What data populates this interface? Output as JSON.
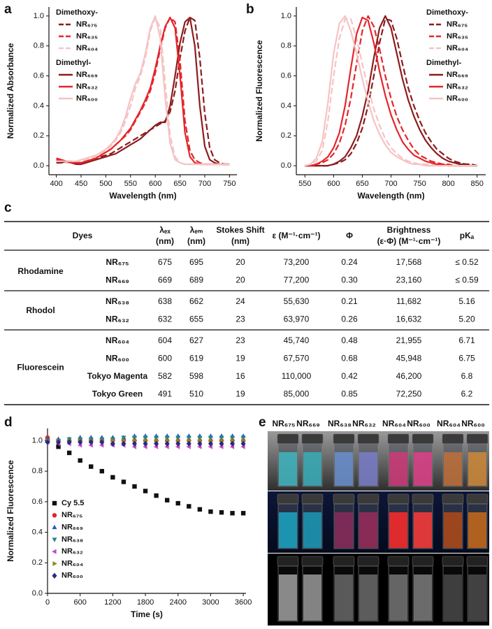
{
  "chart_data": [
    {
      "type": "line",
      "panel_label": "a",
      "x_label": "Wavelength (nm)",
      "y_label": "Normalized Absorbance",
      "xlim": [
        385,
        765
      ],
      "xticks": [
        400,
        450,
        500,
        550,
        600,
        650,
        700,
        750
      ],
      "ylim": [
        -0.06,
        1.06
      ],
      "yticks": [
        {
          "value": 0,
          "label": "0.0"
        },
        0.2,
        0.4,
        0.6,
        0.8,
        {
          "value": 1,
          "label": "1.0"
        }
      ],
      "legend_groups": [
        {
          "title": "Dimethoxy-",
          "style": "dashed"
        },
        {
          "title": "Dimethyl-",
          "style": "solid"
        }
      ],
      "x": [
        400,
        410,
        420,
        430,
        440,
        450,
        460,
        470,
        480,
        490,
        500,
        510,
        520,
        530,
        540,
        550,
        560,
        570,
        580,
        590,
        600,
        610,
        620,
        630,
        640,
        650,
        660,
        670,
        680,
        690,
        700,
        710,
        720,
        730,
        740,
        750
      ],
      "series": [
        {
          "name": "NR₆₇₅",
          "color": "#8c1c1e",
          "style": "dashed",
          "values": [
            0.03,
            0.03,
            0.03,
            0.03,
            0.02,
            0.02,
            0.03,
            0.04,
            0.05,
            0.06,
            0.07,
            0.08,
            0.1,
            0.12,
            0.14,
            0.16,
            0.18,
            0.2,
            0.22,
            0.24,
            0.26,
            0.28,
            0.3,
            0.36,
            0.5,
            0.72,
            0.9,
            0.99,
            0.97,
            0.72,
            0.35,
            0.12,
            0.04,
            0.02,
            0.01,
            0.01
          ]
        },
        {
          "name": "NR₆₃₅",
          "color": "#e4262b",
          "style": "dashed",
          "values": [
            0.05,
            0.04,
            0.03,
            0.02,
            0.02,
            0.02,
            0.03,
            0.04,
            0.05,
            0.07,
            0.09,
            0.11,
            0.14,
            0.17,
            0.2,
            0.24,
            0.3,
            0.36,
            0.42,
            0.5,
            0.62,
            0.78,
            0.92,
            0.99,
            0.96,
            0.7,
            0.3,
            0.1,
            0.04,
            0.02,
            0.01,
            0.01,
            0.01,
            0.01,
            0.01,
            0.01
          ]
        },
        {
          "name": "NR₆₀₄",
          "color": "#f6c3c4",
          "style": "dashed",
          "values": [
            0.02,
            0.02,
            0.02,
            0.02,
            0.02,
            0.03,
            0.04,
            0.05,
            0.06,
            0.08,
            0.1,
            0.13,
            0.17,
            0.22,
            0.3,
            0.4,
            0.52,
            0.6,
            0.72,
            0.9,
            0.99,
            0.92,
            0.55,
            0.2,
            0.06,
            0.02,
            0.01,
            0.01,
            0.01,
            0.01,
            0.01,
            0.01,
            0.01,
            0.01,
            0.01,
            0.01
          ]
        },
        {
          "name": "NR₆₆₉",
          "color": "#8c1c1e",
          "style": "solid",
          "values": [
            0.02,
            0.02,
            0.03,
            0.02,
            0.01,
            0.01,
            0.02,
            0.03,
            0.04,
            0.05,
            0.06,
            0.07,
            0.08,
            0.1,
            0.12,
            0.14,
            0.16,
            0.18,
            0.21,
            0.24,
            0.27,
            0.29,
            0.29,
            0.4,
            0.6,
            0.82,
            0.96,
            0.99,
            0.8,
            0.4,
            0.13,
            0.04,
            0.02,
            0.01,
            0.01,
            0.01
          ]
        },
        {
          "name": "NR₆₃₂",
          "color": "#e4262b",
          "style": "solid",
          "values": [
            0.04,
            0.04,
            0.03,
            0.02,
            0.02,
            0.02,
            0.03,
            0.04,
            0.05,
            0.07,
            0.09,
            0.11,
            0.14,
            0.17,
            0.21,
            0.25,
            0.31,
            0.37,
            0.44,
            0.52,
            0.65,
            0.8,
            0.93,
            0.99,
            0.92,
            0.6,
            0.22,
            0.06,
            0.02,
            0.01,
            0.01,
            0.01,
            0.01,
            0.01,
            0.01,
            0.01
          ]
        },
        {
          "name": "NR₆₀₀",
          "color": "#f6c3c4",
          "style": "solid",
          "values": [
            0.03,
            0.03,
            0.03,
            0.03,
            0.03,
            0.04,
            0.05,
            0.06,
            0.07,
            0.09,
            0.11,
            0.14,
            0.18,
            0.24,
            0.33,
            0.45,
            0.55,
            0.62,
            0.75,
            0.92,
            1.0,
            0.85,
            0.45,
            0.15,
            0.04,
            0.02,
            0.01,
            0.01,
            0.01,
            0.01,
            0.01,
            0.01,
            0.01,
            0.01,
            0.01,
            0.01
          ]
        }
      ]
    },
    {
      "type": "line",
      "panel_label": "b",
      "x_label": "Wavelength (nm)",
      "y_label": "Normalized Fluorescence",
      "xlim": [
        535,
        865
      ],
      "xticks": [
        550,
        600,
        650,
        700,
        750,
        800,
        850
      ],
      "ylim": [
        -0.06,
        1.06
      ],
      "yticks": [
        {
          "value": 0,
          "label": "0.0"
        },
        0.2,
        0.4,
        0.6,
        0.8,
        {
          "value": 1,
          "label": "1.0"
        }
      ],
      "legend_groups": [
        {
          "title": "Dimethoxy-",
          "style": "dashed"
        },
        {
          "title": "Dimethyl-",
          "style": "solid"
        }
      ],
      "x": [
        550,
        560,
        570,
        580,
        590,
        600,
        610,
        620,
        630,
        640,
        650,
        660,
        670,
        680,
        690,
        700,
        710,
        720,
        730,
        740,
        750,
        760,
        770,
        780,
        790,
        800,
        810,
        820,
        830,
        840,
        850
      ],
      "series": [
        {
          "name": "NR₆₇₅",
          "color": "#8c1c1e",
          "style": "dashed",
          "values": [
            0,
            0,
            0,
            0,
            0,
            0.01,
            0.02,
            0.04,
            0.08,
            0.15,
            0.25,
            0.4,
            0.6,
            0.82,
            0.98,
            0.97,
            0.85,
            0.68,
            0.52,
            0.4,
            0.3,
            0.22,
            0.16,
            0.11,
            0.08,
            0.05,
            0.03,
            0.02,
            0.01,
            0.01,
            0
          ]
        },
        {
          "name": "NR₆₃₅",
          "color": "#e4262b",
          "style": "dashed",
          "values": [
            0,
            0,
            0.01,
            0.02,
            0.04,
            0.08,
            0.15,
            0.27,
            0.45,
            0.68,
            0.9,
            1.0,
            0.93,
            0.78,
            0.6,
            0.45,
            0.33,
            0.24,
            0.17,
            0.11,
            0.07,
            0.05,
            0.03,
            0.02,
            0.01,
            0.01,
            0,
            0,
            0,
            0,
            0
          ]
        },
        {
          "name": "NR₆₀₄",
          "color": "#f6c3c4",
          "style": "dashed",
          "values": [
            0,
            0.01,
            0.03,
            0.1,
            0.3,
            0.6,
            0.85,
            0.98,
            0.98,
            0.85,
            0.68,
            0.52,
            0.38,
            0.27,
            0.18,
            0.12,
            0.08,
            0.05,
            0.03,
            0.02,
            0.01,
            0.01,
            0.01,
            0,
            0,
            0,
            0,
            0,
            0,
            0,
            0
          ]
        },
        {
          "name": "NR₆₆₉",
          "color": "#8c1c1e",
          "style": "solid",
          "values": [
            0,
            0,
            0,
            0,
            0,
            0.01,
            0.03,
            0.06,
            0.12,
            0.2,
            0.33,
            0.5,
            0.72,
            0.92,
            1.0,
            0.92,
            0.75,
            0.58,
            0.44,
            0.33,
            0.24,
            0.17,
            0.12,
            0.08,
            0.05,
            0.03,
            0.02,
            0.01,
            0.01,
            0,
            0
          ]
        },
        {
          "name": "NR₆₃₂",
          "color": "#e4262b",
          "style": "solid",
          "values": [
            0,
            0,
            0.01,
            0.03,
            0.06,
            0.12,
            0.22,
            0.4,
            0.65,
            0.88,
            0.99,
            0.97,
            0.82,
            0.63,
            0.47,
            0.34,
            0.24,
            0.16,
            0.11,
            0.07,
            0.05,
            0.03,
            0.02,
            0.01,
            0.01,
            0,
            0,
            0,
            0,
            0,
            0
          ]
        },
        {
          "name": "NR₆₀₀",
          "color": "#f6c3c4",
          "style": "solid",
          "values": [
            0,
            0.01,
            0.05,
            0.16,
            0.42,
            0.75,
            0.95,
            1.0,
            0.9,
            0.75,
            0.58,
            0.43,
            0.3,
            0.21,
            0.14,
            0.09,
            0.06,
            0.04,
            0.02,
            0.01,
            0.01,
            0,
            0,
            0,
            0,
            0,
            0,
            0,
            0,
            0,
            0
          ]
        }
      ]
    },
    {
      "type": "scatter",
      "panel_label": "d",
      "x_label": "Time (s)",
      "y_label": "Normalized Fluorescence",
      "xlim": [
        0,
        3650
      ],
      "xticks": [
        0,
        600,
        1200,
        1800,
        2400,
        3000,
        3600
      ],
      "ylim": [
        0,
        1.08
      ],
      "yticks": [
        {
          "value": 0,
          "label": "0.0"
        },
        0.2,
        0.4,
        0.6,
        0.8,
        {
          "value": 1,
          "label": "1.0"
        }
      ],
      "x": [
        0,
        200,
        400,
        600,
        800,
        1000,
        1200,
        1400,
        1600,
        1800,
        2000,
        2200,
        2400,
        2600,
        2800,
        3000,
        3200,
        3400,
        3600
      ],
      "series": [
        {
          "name": "Cy 5.5",
          "color": "#111111",
          "marker": "square",
          "values": [
            1.0,
            0.96,
            0.92,
            0.87,
            0.83,
            0.8,
            0.76,
            0.73,
            0.7,
            0.67,
            0.64,
            0.61,
            0.59,
            0.57,
            0.55,
            0.535,
            0.53,
            0.525,
            0.525
          ]
        },
        {
          "name": "NR₆₇₅",
          "color": "#e8212a",
          "marker": "circle",
          "values": [
            1.02,
            1.0,
            1.0,
            1.0,
            1.0,
            1.0,
            1.0,
            1.0,
            1.0,
            1.0,
            1.0,
            1.0,
            1.0,
            1.0,
            1.0,
            1.0,
            1.0,
            1.0,
            1.0
          ]
        },
        {
          "name": "NR₆₆₉",
          "color": "#3355c8",
          "marker": "triangle-up",
          "values": [
            1.01,
            1.01,
            1.01,
            1.02,
            1.02,
            1.02,
            1.02,
            1.02,
            1.03,
            1.03,
            1.03,
            1.03,
            1.03,
            1.03,
            1.03,
            1.03,
            1.03,
            1.03,
            1.03
          ]
        },
        {
          "name": "NR₆₃₈",
          "color": "#1c8a84",
          "marker": "triangle-down",
          "values": [
            1.0,
            1.0,
            1.01,
            1.01,
            1.01,
            1.01,
            1.01,
            1.02,
            1.02,
            1.02,
            1.02,
            1.02,
            1.02,
            1.02,
            1.02,
            1.02,
            1.02,
            1.02,
            1.02
          ]
        },
        {
          "name": "NR₆₃₂",
          "color": "#c04cc4",
          "marker": "triangle-left",
          "values": [
            0.99,
            0.98,
            0.98,
            0.97,
            0.97,
            0.97,
            0.97,
            0.97,
            0.96,
            0.96,
            0.96,
            0.96,
            0.96,
            0.96,
            0.96,
            0.96,
            0.96,
            0.96,
            0.96
          ]
        },
        {
          "name": "NR₆₀₄",
          "color": "#8a8a1e",
          "marker": "triangle-right",
          "values": [
            1.0,
            1.0,
            1.0,
            1.0,
            1.0,
            1.0,
            1.0,
            1.0,
            1.0,
            1.0,
            1.0,
            1.0,
            1.0,
            1.0,
            1.0,
            1.0,
            1.0,
            1.0,
            1.0
          ]
        },
        {
          "name": "NR₆₀₀",
          "color": "#2a2a86",
          "marker": "diamond",
          "values": [
            0.99,
            0.99,
            0.99,
            0.99,
            0.99,
            0.99,
            0.98,
            0.98,
            0.98,
            0.98,
            0.98,
            0.98,
            0.98,
            0.98,
            0.98,
            0.98,
            0.98,
            0.98,
            0.98
          ]
        }
      ]
    }
  ],
  "table": {
    "panel_label": "c",
    "columns": [
      [
        "Dyes"
      ],
      [
        "λₑₓ",
        "(nm)"
      ],
      [
        "λₑₘ",
        "(nm)"
      ],
      [
        "Stokes Shift",
        "(nm)"
      ],
      [
        "ε (M⁻¹·cm⁻¹)"
      ],
      [
        "Φ"
      ],
      [
        "Brightness",
        "(ε·Φ) (M⁻¹·cm⁻¹)"
      ],
      [
        "pKₐ"
      ]
    ],
    "groups": [
      {
        "name": "Rhodamine",
        "rows": [
          [
            "NR₆₇₅",
            "675",
            "695",
            "20",
            "73,200",
            "0.24",
            "17,568",
            "≤ 0.52"
          ],
          [
            "NR₆₆₉",
            "669",
            "689",
            "20",
            "77,200",
            "0.30",
            "23,160",
            "≤ 0.59"
          ]
        ]
      },
      {
        "name": "Rhodol",
        "rows": [
          [
            "NR₆₃₈",
            "638",
            "662",
            "24",
            "55,630",
            "0.21",
            "11,682",
            "5.16"
          ],
          [
            "NR₆₃₂",
            "632",
            "655",
            "23",
            "63,970",
            "0.26",
            "16,632",
            "5.20"
          ]
        ]
      },
      {
        "name": "Fluorescein",
        "rows": [
          [
            "NR₆₀₄",
            "604",
            "627",
            "23",
            "45,740",
            "0.48",
            "21,955",
            "6.71"
          ],
          [
            "NR₆₀₀",
            "600",
            "619",
            "19",
            "67,570",
            "0.68",
            "45,948",
            "6.75"
          ],
          [
            "Tokyo Magenta",
            "582",
            "598",
            "16",
            "110,000",
            "0.42",
            "46,200",
            "6.8"
          ],
          [
            "Tokyo Green",
            "491",
            "510",
            "19",
            "85,000",
            "0.85",
            "72,250",
            "6.2"
          ]
        ]
      }
    ]
  },
  "photo": {
    "panel_label": "e",
    "labels": [
      "NR₆₇₅",
      "NR₆₆₉",
      "NR₆₃₈",
      "NR₆₃₂",
      "NR₆₀₄",
      "NR₆₀₀",
      "NR₆₀₄",
      "NR₆₀₀"
    ]
  }
}
